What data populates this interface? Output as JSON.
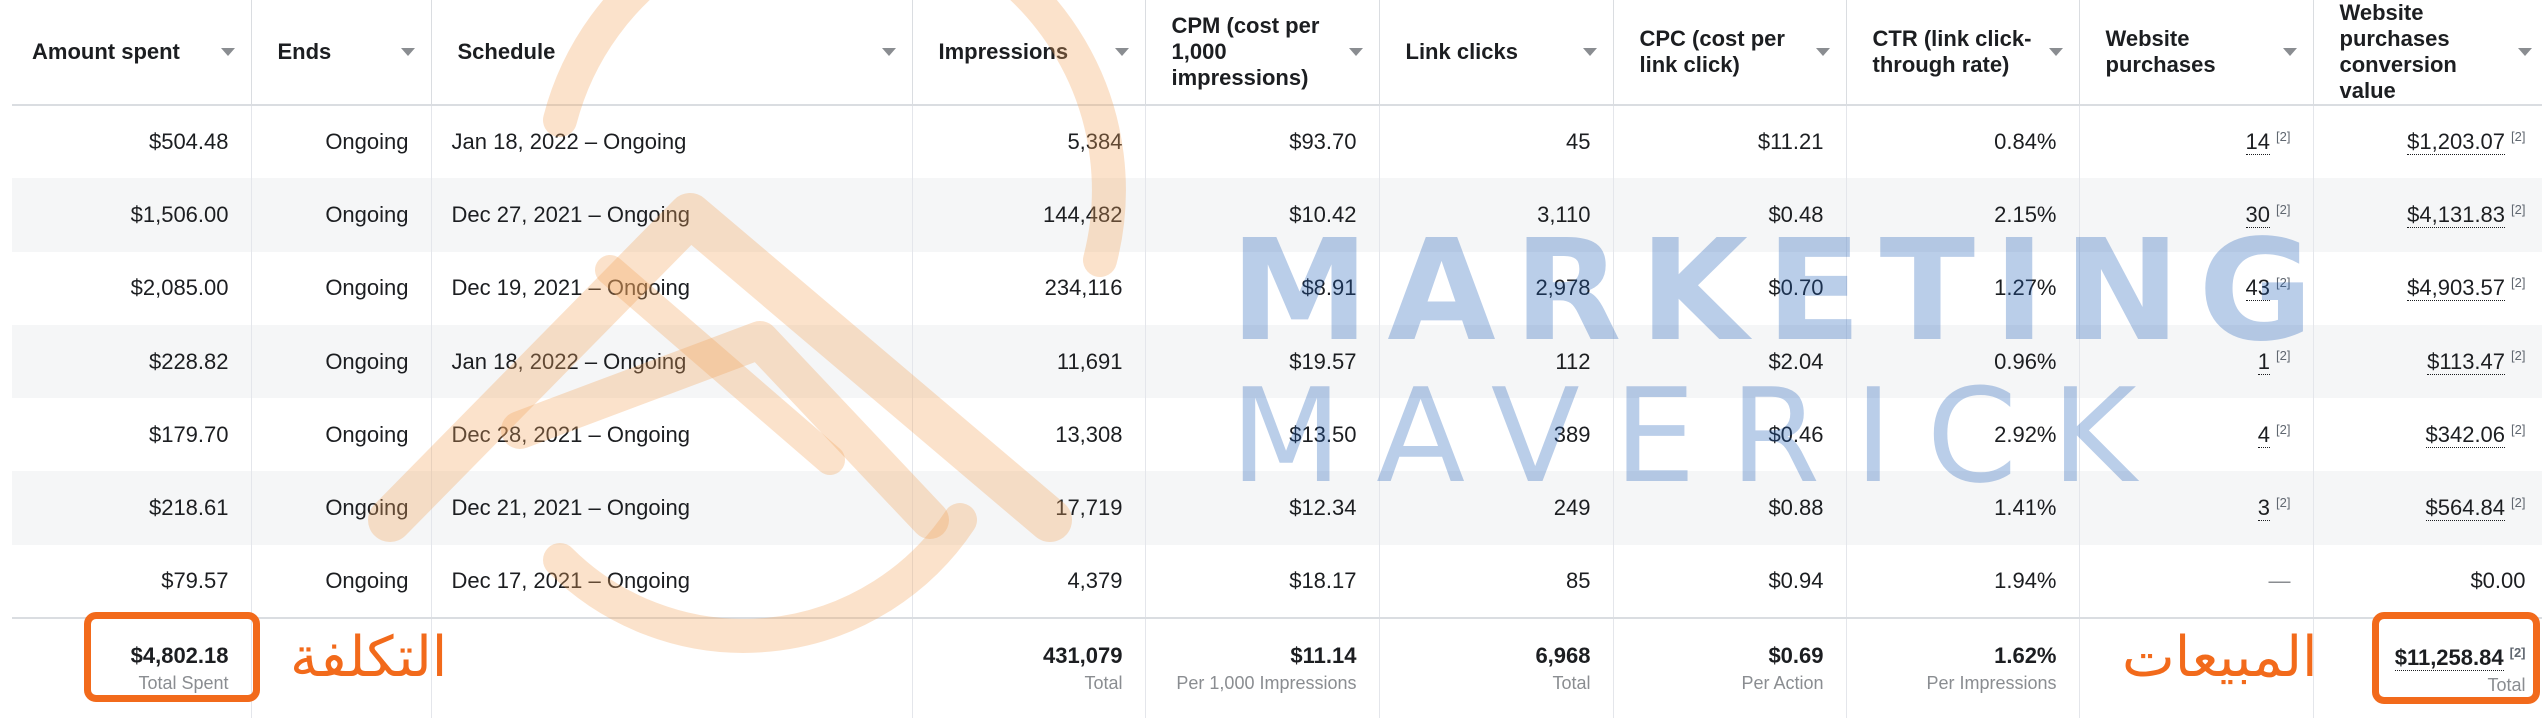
{
  "columns": [
    {
      "label": "Amount spent"
    },
    {
      "label": "Ends"
    },
    {
      "label": "Schedule"
    },
    {
      "label": "Impressions"
    },
    {
      "label": "CPM (cost per 1,000 impressions)"
    },
    {
      "label": "Link clicks"
    },
    {
      "label": "CPC (cost per link click)"
    },
    {
      "label": "CTR (link click-through rate)"
    },
    {
      "label": "Website purchases"
    },
    {
      "label": "Website purchases conversion value"
    }
  ],
  "rows": [
    {
      "amount": "$504.48",
      "ends": "Ongoing",
      "schedule": "Jan 18, 2022 – Ongoing",
      "impressions": "5,384",
      "cpm": "$93.70",
      "clicks": "45",
      "cpc": "$11.21",
      "ctr": "0.84%",
      "purchases": "14",
      "pnote": "[2]",
      "value": "$1,203.07",
      "vnote": "[2]"
    },
    {
      "amount": "$1,506.00",
      "ends": "Ongoing",
      "schedule": "Dec 27, 2021 – Ongoing",
      "impressions": "144,482",
      "cpm": "$10.42",
      "clicks": "3,110",
      "cpc": "$0.48",
      "ctr": "2.15%",
      "purchases": "30",
      "pnote": "[2]",
      "value": "$4,131.83",
      "vnote": "[2]"
    },
    {
      "amount": "$2,085.00",
      "ends": "Ongoing",
      "schedule": "Dec 19, 2021 – Ongoing",
      "impressions": "234,116",
      "cpm": "$8.91",
      "clicks": "2,978",
      "cpc": "$0.70",
      "ctr": "1.27%",
      "purchases": "43",
      "pnote": "[2]",
      "value": "$4,903.57",
      "vnote": "[2]"
    },
    {
      "amount": "$228.82",
      "ends": "Ongoing",
      "schedule": "Jan 18, 2022 – Ongoing",
      "impressions": "11,691",
      "cpm": "$19.57",
      "clicks": "112",
      "cpc": "$2.04",
      "ctr": "0.96%",
      "purchases": "1",
      "pnote": "[2]",
      "value": "$113.47",
      "vnote": "[2]"
    },
    {
      "amount": "$179.70",
      "ends": "Ongoing",
      "schedule": "Dec 28, 2021 – Ongoing",
      "impressions": "13,308",
      "cpm": "$13.50",
      "clicks": "389",
      "cpc": "$0.46",
      "ctr": "2.92%",
      "purchases": "4",
      "pnote": "[2]",
      "value": "$342.06",
      "vnote": "[2]"
    },
    {
      "amount": "$218.61",
      "ends": "Ongoing",
      "schedule": "Dec 21, 2021 – Ongoing",
      "impressions": "17,719",
      "cpm": "$12.34",
      "clicks": "249",
      "cpc": "$0.88",
      "ctr": "1.41%",
      "purchases": "3",
      "pnote": "[2]",
      "value": "$564.84",
      "vnote": "[2]"
    },
    {
      "amount": "$79.57",
      "ends": "Ongoing",
      "schedule": "Dec 17, 2021 – Ongoing",
      "impressions": "4,379",
      "cpm": "$18.17",
      "clicks": "85",
      "cpc": "$0.94",
      "ctr": "1.94%",
      "purchases": "—",
      "pnote": "",
      "value": "$0.00",
      "vnote": ""
    }
  ],
  "totals": {
    "amount": {
      "value": "$4,802.18",
      "label": "Total Spent"
    },
    "impressions": {
      "value": "431,079",
      "label": "Total"
    },
    "cpm": {
      "value": "$11.14",
      "label": "Per 1,000 Impressions"
    },
    "clicks": {
      "value": "6,968",
      "label": "Total"
    },
    "cpc": {
      "value": "$0.69",
      "label": "Per Action"
    },
    "ctr": {
      "value": "1.62%",
      "label": "Per Impressions"
    },
    "value": {
      "value": "$11,258.84",
      "note": "[2]",
      "label": "Total"
    }
  },
  "watermark": {
    "line1": "MARKETING",
    "line2": "MAVERICK"
  },
  "annotations": {
    "cost": "التكلفة",
    "sales": "المبيعات"
  },
  "colors": {
    "highlight": "#f26a1b",
    "watermark": "#1f5fb8",
    "row_alt": "#f5f6f7"
  }
}
